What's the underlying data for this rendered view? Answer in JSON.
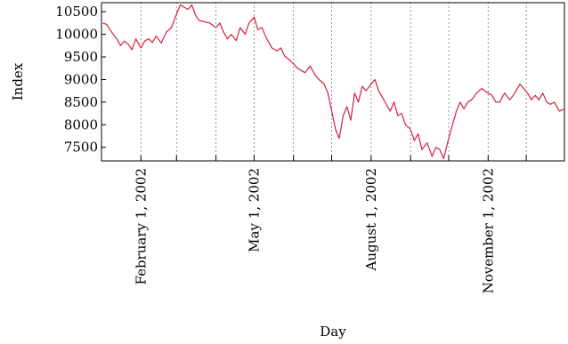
{
  "chart_data": {
    "type": "line",
    "xlabel": "Day",
    "ylabel": "Index",
    "xlim": [
      "2002-01-01",
      "2002-12-31"
    ],
    "ylim": [
      7200,
      10700
    ],
    "y_ticks": [
      7500,
      8000,
      8500,
      9000,
      9500,
      10000,
      10500
    ],
    "x_ticks": [
      "2002-01-01",
      "2002-02-01",
      "2002-03-01",
      "2002-04-01",
      "2002-05-01",
      "2002-06-01",
      "2002-07-01",
      "2002-08-01",
      "2002-09-01",
      "2002-10-01",
      "2002-11-01",
      "2002-12-01"
    ],
    "x_tick_labels": [
      "",
      "February 1, 2002",
      "",
      "",
      "May 1, 2002",
      "",
      "",
      "August 1, 2002",
      "",
      "",
      "November 1, 2002",
      ""
    ],
    "grid": "vertical dotted at month starts",
    "color": "#d62040",
    "series": [
      {
        "x": [
          "2002-01-02",
          "2002-01-05",
          "2002-01-09",
          "2002-01-13",
          "2002-01-16",
          "2002-01-19",
          "2002-01-22",
          "2002-01-25",
          "2002-01-28",
          "2002-02-01",
          "2002-02-04",
          "2002-02-07",
          "2002-02-10",
          "2002-02-13",
          "2002-02-17",
          "2002-02-21",
          "2002-02-25",
          "2002-03-01",
          "2002-03-04",
          "2002-03-07",
          "2002-03-10",
          "2002-03-13",
          "2002-03-16",
          "2002-03-19",
          "2002-03-23",
          "2002-03-27",
          "2002-04-01",
          "2002-04-04",
          "2002-04-07",
          "2002-04-10",
          "2002-04-13",
          "2002-04-17",
          "2002-04-20",
          "2002-04-24",
          "2002-04-27",
          "2002-05-01",
          "2002-05-04",
          "2002-05-07",
          "2002-05-11",
          "2002-05-15",
          "2002-05-19",
          "2002-05-22",
          "2002-05-25",
          "2002-05-28",
          "2002-06-01",
          "2002-06-04",
          "2002-06-07",
          "2002-06-10",
          "2002-06-14",
          "2002-06-18",
          "2002-06-21",
          "2002-06-25",
          "2002-06-28",
          "2002-07-01",
          "2002-07-04",
          "2002-07-07",
          "2002-07-10",
          "2002-07-13",
          "2002-07-16",
          "2002-07-19",
          "2002-07-22",
          "2002-07-25",
          "2002-07-28",
          "2002-08-01",
          "2002-08-04",
          "2002-08-07",
          "2002-08-10",
          "2002-08-13",
          "2002-08-16",
          "2002-08-19",
          "2002-08-22",
          "2002-08-25",
          "2002-08-28",
          "2002-09-01",
          "2002-09-04",
          "2002-09-07",
          "2002-09-10",
          "2002-09-14",
          "2002-09-18",
          "2002-09-21",
          "2002-09-24",
          "2002-09-27",
          "2002-10-01",
          "2002-10-04",
          "2002-10-07",
          "2002-10-10",
          "2002-10-13",
          "2002-10-16",
          "2002-10-19",
          "2002-10-23",
          "2002-10-27",
          "2002-11-01",
          "2002-11-04",
          "2002-11-07",
          "2002-11-10",
          "2002-11-14",
          "2002-11-18",
          "2002-11-22",
          "2002-11-26",
          "2002-11-29",
          "2002-12-02",
          "2002-12-05",
          "2002-12-08",
          "2002-12-11",
          "2002-12-14",
          "2002-12-17",
          "2002-12-20",
          "2002-12-23",
          "2002-12-27",
          "2002-12-31"
        ],
        "y": [
          10250,
          10220,
          10050,
          9900,
          9750,
          9850,
          9780,
          9660,
          9900,
          9700,
          9850,
          9900,
          9820,
          9960,
          9810,
          10050,
          10150,
          10450,
          10650,
          10600,
          10550,
          10650,
          10420,
          10300,
          10280,
          10250,
          10150,
          10250,
          10050,
          9900,
          10000,
          9860,
          10150,
          10000,
          10250,
          10380,
          10100,
          10150,
          9900,
          9700,
          9630,
          9700,
          9520,
          9450,
          9350,
          9250,
          9200,
          9150,
          9300,
          9100,
          9000,
          8900,
          8700,
          8300,
          7900,
          7700,
          8200,
          8400,
          8100,
          8700,
          8500,
          8850,
          8750,
          8900,
          9000,
          8750,
          8600,
          8450,
          8300,
          8500,
          8200,
          8250,
          8000,
          7900,
          7650,
          7800,
          7450,
          7600,
          7300,
          7500,
          7450,
          7250,
          7700,
          8000,
          8300,
          8500,
          8350,
          8500,
          8550,
          8700,
          8800,
          8700,
          8650,
          8500,
          8500,
          8700,
          8550,
          8700,
          8900,
          8800,
          8700,
          8550,
          8650,
          8550,
          8700,
          8500,
          8450,
          8500,
          8300,
          8350
        ]
      }
    ]
  }
}
